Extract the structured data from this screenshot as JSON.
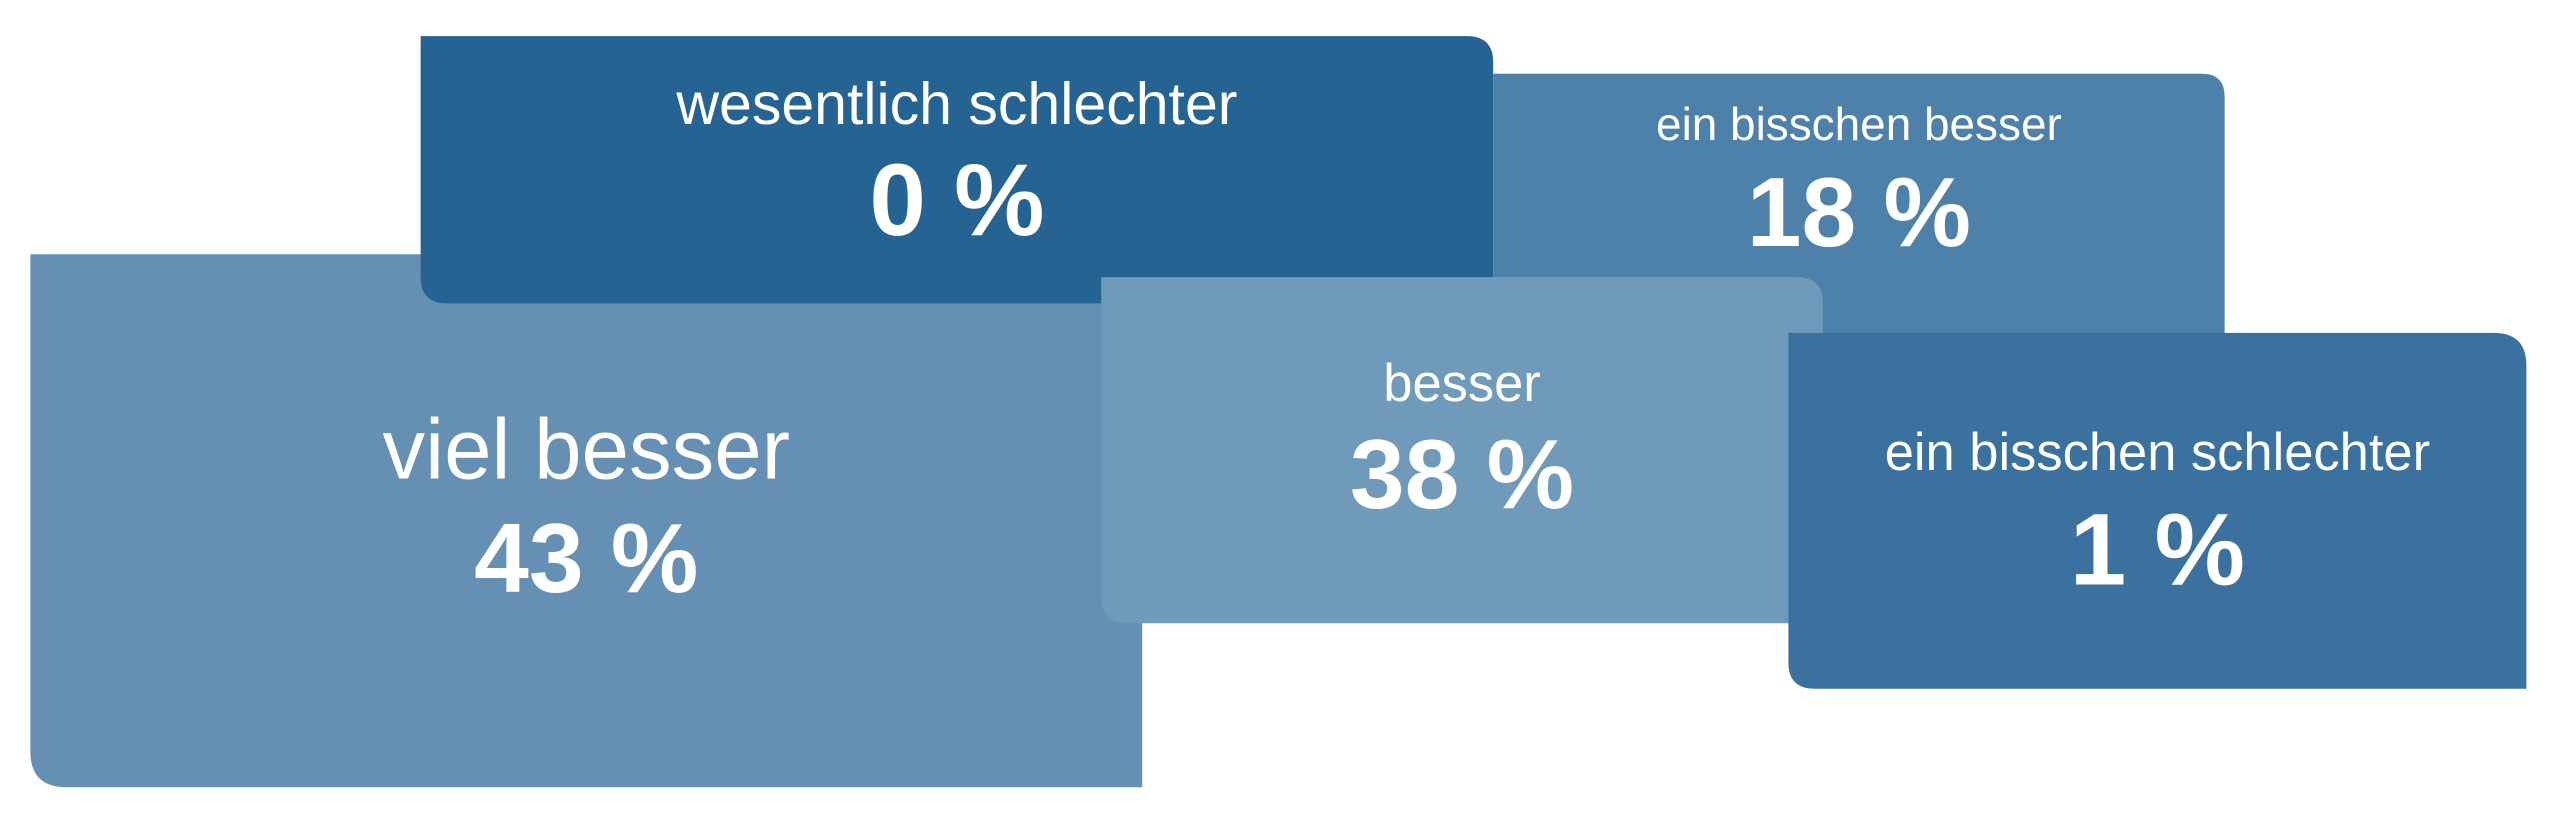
{
  "boxes": [
    {
      "label": "viel besser",
      "value": "43 %"
    },
    {
      "label": "wesentlich schlechter",
      "value": "0 %"
    },
    {
      "label": "ein bisschen besser",
      "value": "18 %"
    },
    {
      "label": "besser",
      "value": "38 %"
    },
    {
      "label": "ein bisschen schlechter",
      "value": "1 %"
    }
  ]
}
